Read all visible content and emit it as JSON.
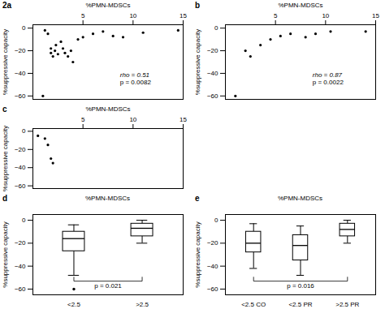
{
  "chart_data": [
    {
      "type": "scatter",
      "title": "2a",
      "x_label": "%PMN-MDSCs",
      "y_label": "%suppressive capacity",
      "x": [
        1.0,
        1.2,
        1.5,
        1.8,
        1.8,
        2.0,
        2.2,
        2.3,
        2.5,
        2.8,
        3.0,
        3.2,
        3.5,
        3.8,
        4.0,
        4.5,
        5.0,
        6.0,
        7.0,
        8.0,
        9.0,
        11.0,
        14.5
      ],
      "values": [
        -60,
        -2,
        -5,
        -22,
        -18,
        -25,
        -20,
        -15,
        -23,
        -12,
        -18,
        -22,
        -25,
        -20,
        -30,
        -10,
        -8,
        -5,
        -3,
        -7,
        -8,
        -4,
        -2
      ],
      "color": "#000000",
      "annotations": [
        "rho = 0.51",
        "p = 0.0082"
      ],
      "xlim": [
        0,
        15
      ],
      "xticks": [
        5,
        10,
        15
      ],
      "ylim": [
        -63,
        3
      ],
      "yticks": [
        0,
        -20,
        -40,
        -60
      ]
    },
    {
      "type": "scatter",
      "title": "b",
      "x_label": "%PMN-MDSCs",
      "y_label": "%suppressive capacity",
      "x": [
        1.0,
        2.0,
        2.5,
        3.5,
        4.5,
        5.5,
        6.5,
        8.0,
        9.0,
        10.5,
        14.0
      ],
      "values": [
        -60,
        -20,
        -25,
        -15,
        -10,
        -7,
        -5,
        -8,
        -5,
        -3,
        -3
      ],
      "color": "#000000",
      "annotations": [
        "rho = 0.87",
        "p = 0.0022"
      ],
      "xlim": [
        0,
        15
      ],
      "xticks": [
        5,
        10,
        15
      ],
      "ylim": [
        -63,
        3
      ],
      "yticks": [
        0,
        -20,
        -40,
        -60
      ]
    },
    {
      "type": "scatter",
      "title": "c",
      "x_label": "%PMN-MDSCs",
      "y_label": "%suppressive capacity",
      "x": [
        0.5,
        1.2,
        1.5,
        1.8,
        2.0
      ],
      "values": [
        -5,
        -8,
        -15,
        -30,
        -35
      ],
      "color": "#000000",
      "xlim": [
        0,
        15
      ],
      "xticks": [
        5,
        10,
        15
      ],
      "ylim": [
        -63,
        3
      ],
      "yticks": [
        0,
        -20,
        -40,
        -60
      ]
    },
    {
      "type": "box",
      "title": "d",
      "x_label": "%PMN-MDSCs",
      "y_label": "%suppressive capacity",
      "categories": [
        "<2.5",
        ">2.5"
      ],
      "q1": [
        -27,
        -14
      ],
      "median": [
        -16,
        -7
      ],
      "q3": [
        -10,
        -3
      ],
      "whisker_low": [
        -48,
        -20
      ],
      "whisker_high": [
        -4,
        0
      ],
      "outliers": [
        [
          -60
        ],
        []
      ],
      "color": "#000000",
      "annotations": [
        "p = 0.021"
      ],
      "ylim": [
        -65,
        5
      ],
      "yticks": [
        0,
        -20,
        -40,
        -60
      ]
    },
    {
      "type": "box",
      "title": "e",
      "x_label": "%PMN-MDSCs",
      "y_label": "%suppressive capacity",
      "categories": [
        "<2.5 CO",
        "<2.5 PR",
        ">2.5 PR"
      ],
      "q1": [
        -28,
        -35,
        -14
      ],
      "median": [
        -20,
        -22,
        -8
      ],
      "q3": [
        -10,
        -13,
        -3
      ],
      "whisker_low": [
        -42,
        -48,
        -20
      ],
      "whisker_high": [
        -3,
        -5,
        0
      ],
      "outliers": [
        [],
        [],
        []
      ],
      "color": "#000000",
      "annotations": [
        "p = 0.016"
      ],
      "ylim": [
        -65,
        5
      ],
      "yticks": [
        0,
        -20,
        -40,
        -60
      ]
    }
  ]
}
